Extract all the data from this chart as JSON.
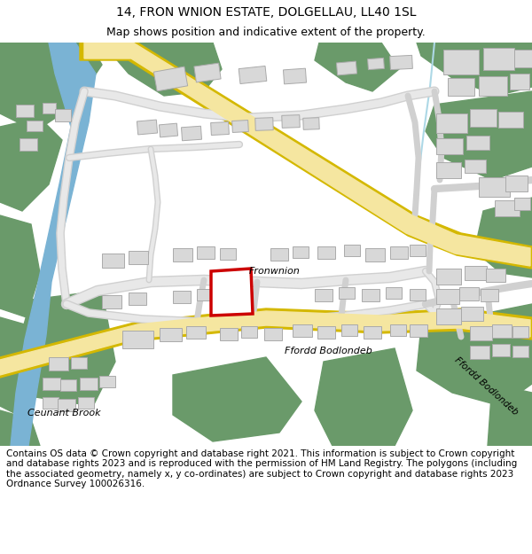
{
  "title_line1": "14, FRON WNION ESTATE, DOLGELLAU, LL40 1SL",
  "title_line2": "Map shows position and indicative extent of the property.",
  "footer": "Contains OS data © Crown copyright and database right 2021. This information is subject to Crown copyright and database rights 2023 and is reproduced with the permission of HM Land Registry. The polygons (including the associated geometry, namely x, y co-ordinates) are subject to Crown copyright and database rights 2023 Ordnance Survey 100026316.",
  "map_bg": "#ffffff",
  "green_color": "#6a9a6a",
  "road_fill": "#f5e6a0",
  "road_edge": "#d4b800",
  "building_color": "#d8d8d8",
  "building_border": "#aaaaaa",
  "river_color": "#7ab3d4",
  "stream_color": "#add8e6",
  "highlight_color": "#cc0000",
  "road_label1": "Fronwnion",
  "road_label2": "Ffordd Bodlondeb",
  "road_label3": "Ffordd Bodlondeb",
  "area_label": "Ceunant Brook",
  "fig_width": 6.0,
  "fig_height": 6.25,
  "title_fontsize": 10,
  "subtitle_fontsize": 9,
  "footer_fontsize": 7.5
}
